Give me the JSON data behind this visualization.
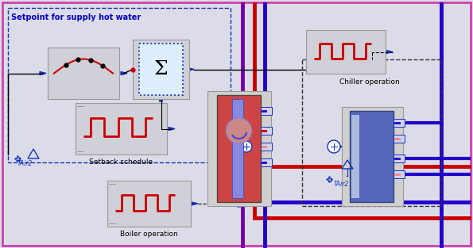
{
  "fig_width": 5.95,
  "fig_height": 3.13,
  "dpi": 100,
  "bg_color": "#dcdce8",
  "border_color": "#cc44aa",
  "border_lw": 2.0,
  "title": "Setpoint for supply hot water",
  "title_color": "#0000cc",
  "title_fontsize": 7.0,
  "labels": {
    "setback_schedule": "Setback schedule",
    "boiler_operation": "Boiler operation",
    "chiller_operation": "Chiller operation",
    "tair2_left": "TAir2",
    "tair2_right": "TAir2"
  },
  "colors": {
    "red": "#cc0000",
    "blue": "#2200cc",
    "dark_blue": "#1133bb",
    "purple": "#7700aa",
    "light_red": "#ee8888",
    "gray": "#999999",
    "light_gray": "#cccccc",
    "boiler_fill": "#cc4444",
    "chiller_fill": "#5566bb",
    "box_bg": "#d8d8e0",
    "dashed_box": "#333333",
    "black": "#000000",
    "setpoint_box_bg": "#dcdce8",
    "sigma_box_bg": "#ddeeff",
    "schedule_box_bg": "#cccccc",
    "white": "#ffffff"
  }
}
